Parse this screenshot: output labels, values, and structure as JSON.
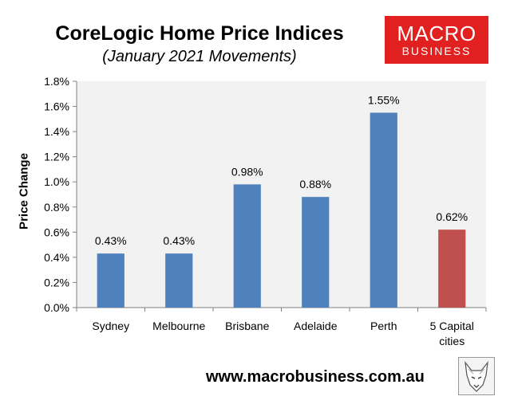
{
  "chart_data": {
    "type": "bar",
    "title": "CoreLogic Home Price Indices",
    "subtitle": "(January 2021 Movements)",
    "ylabel": "Price Change",
    "xlabel": "",
    "categories": [
      "Sydney",
      "Melbourne",
      "Brisbane",
      "Adelaide",
      "Perth",
      "5 Capital cities"
    ],
    "category_lines": [
      [
        "Sydney"
      ],
      [
        "Melbourne"
      ],
      [
        "Brisbane"
      ],
      [
        "Adelaide"
      ],
      [
        "Perth"
      ],
      [
        "5 Capital",
        "cities"
      ]
    ],
    "values": [
      0.43,
      0.43,
      0.98,
      0.88,
      1.55,
      0.62
    ],
    "data_labels": [
      "0.43%",
      "0.43%",
      "0.98%",
      "0.88%",
      "1.55%",
      "0.62%"
    ],
    "bar_colors": [
      "#4f81bd",
      "#4f81bd",
      "#4f81bd",
      "#4f81bd",
      "#4f81bd",
      "#c0504d"
    ],
    "ylim": [
      0,
      1.8
    ],
    "yticks": [
      0,
      0.2,
      0.4,
      0.6,
      0.8,
      1.0,
      1.2,
      1.4,
      1.6,
      1.8
    ],
    "ytick_labels": [
      "0.0%",
      "0.2%",
      "0.4%",
      "0.6%",
      "0.8%",
      "1.0%",
      "1.2%",
      "1.4%",
      "1.6%",
      "1.8%"
    ],
    "plot_background": "#f2f2f2",
    "grid": false,
    "legend": "none"
  },
  "logo": {
    "line1": "MACRO",
    "line2": "BUSINESS",
    "background": "#e1211f"
  },
  "footer": {
    "url": "www.macrobusiness.com.au"
  },
  "icons": {
    "corner_image": "wolf-logo-icon"
  }
}
